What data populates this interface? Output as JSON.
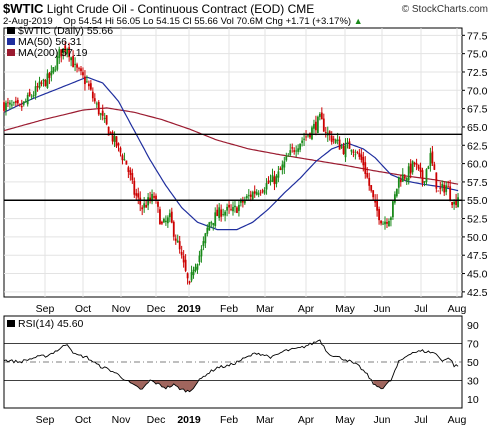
{
  "header": {
    "symbol": "$WTIC",
    "description": "Light Crude Oil - Continuous Contract (EOD)",
    "exchange": "CME",
    "date": "2-Aug-2019",
    "ohlc": "Op 54.54  Hi 56.05  Lo 54.15  Cl 55.66  Vol 70.6M  Chg +1.71 (+3.17%)",
    "chg_arrow": "▲",
    "copyright": "© StockCharts.com"
  },
  "chart_data": [
    {
      "type": "candlestick",
      "title": "Light Crude Oil - Continuous Contract (EOD)",
      "legend": [
        {
          "label": "$WTIC (Daily) 55.66",
          "color": "#000000"
        },
        {
          "label": "MA(50) 56.31",
          "color": "#1f2e9e"
        },
        {
          "label": "MA(200) 57.19",
          "color": "#9b1b30"
        }
      ],
      "legend_placement": "top-left",
      "x_labels": [
        "Sep",
        "Oct",
        "Nov",
        "Dec",
        "2019",
        "Feb",
        "Mar",
        "Apr",
        "May",
        "Jun",
        "Jul",
        "Aug"
      ],
      "y_ticks": [
        42.5,
        45.0,
        47.5,
        50.0,
        52.5,
        55.0,
        57.5,
        60.0,
        62.5,
        65.0,
        67.5,
        70.0,
        72.5,
        75.0,
        77.5
      ],
      "ylim": [
        41.8,
        78.5
      ],
      "xlim": [
        0,
        232
      ],
      "close_anchors": [
        [
          0,
          68.0
        ],
        [
          8,
          67.5
        ],
        [
          18,
          70.5
        ],
        [
          24,
          72.0
        ],
        [
          28,
          75.0
        ],
        [
          32,
          76.0
        ],
        [
          36,
          73.0
        ],
        [
          42,
          71.0
        ],
        [
          45,
          69.0
        ],
        [
          50,
          66.0
        ],
        [
          56,
          63.0
        ],
        [
          62,
          60.0
        ],
        [
          66,
          56.0
        ],
        [
          70,
          54.0
        ],
        [
          76,
          55.5
        ],
        [
          80,
          51.5
        ],
        [
          84,
          52.5
        ],
        [
          88,
          49.0
        ],
        [
          92,
          45.0
        ],
        [
          94,
          43.0
        ],
        [
          96,
          46.0
        ],
        [
          100,
          48.0
        ],
        [
          104,
          52.0
        ],
        [
          110,
          53.5
        ],
        [
          116,
          53.5
        ],
        [
          120,
          54.5
        ],
        [
          126,
          56.0
        ],
        [
          132,
          57.0
        ],
        [
          138,
          58.0
        ],
        [
          142,
          60.0
        ],
        [
          148,
          62.5
        ],
        [
          154,
          64.0
        ],
        [
          160,
          66.0
        ],
        [
          164,
          64.0
        ],
        [
          168,
          63.0
        ],
        [
          172,
          62.0
        ],
        [
          176,
          62.5
        ],
        [
          182,
          60.0
        ],
        [
          188,
          54.0
        ],
        [
          192,
          52.0
        ],
        [
          196,
          53.0
        ],
        [
          200,
          58.0
        ],
        [
          204,
          58.5
        ],
        [
          208,
          60.0
        ],
        [
          212,
          57.5
        ],
        [
          216,
          61.0
        ],
        [
          220,
          56.0
        ],
        [
          224,
          57.0
        ],
        [
          228,
          54.5
        ],
        [
          230,
          55.66
        ]
      ],
      "ma50_anchors": [
        [
          0,
          67.0
        ],
        [
          14,
          68.8
        ],
        [
          30,
          70.5
        ],
        [
          42,
          71.8
        ],
        [
          50,
          71.0
        ],
        [
          58,
          68.5
        ],
        [
          66,
          64.5
        ],
        [
          74,
          60.5
        ],
        [
          82,
          57.0
        ],
        [
          90,
          54.0
        ],
        [
          98,
          52.0
        ],
        [
          108,
          51.0
        ],
        [
          118,
          51.0
        ],
        [
          126,
          52.0
        ],
        [
          134,
          53.8
        ],
        [
          142,
          56.0
        ],
        [
          150,
          58.0
        ],
        [
          158,
          60.3
        ],
        [
          166,
          62.0
        ],
        [
          174,
          62.8
        ],
        [
          182,
          62.0
        ],
        [
          188,
          60.8
        ],
        [
          196,
          58.5
        ],
        [
          204,
          57.6
        ],
        [
          212,
          57.2
        ],
        [
          222,
          56.8
        ],
        [
          230,
          56.31
        ]
      ],
      "ma200_anchors": [
        [
          0,
          64.5
        ],
        [
          20,
          66.0
        ],
        [
          40,
          67.3
        ],
        [
          52,
          67.6
        ],
        [
          66,
          67.0
        ],
        [
          80,
          66.0
        ],
        [
          94,
          64.7
        ],
        [
          108,
          63.2
        ],
        [
          124,
          62.0
        ],
        [
          140,
          61.2
        ],
        [
          156,
          60.5
        ],
        [
          172,
          59.8
        ],
        [
          188,
          59.0
        ],
        [
          204,
          58.3
        ],
        [
          218,
          57.8
        ],
        [
          230,
          57.19
        ]
      ],
      "horizontal_lines": [
        64.0,
        55.0
      ]
    },
    {
      "type": "line",
      "title": "RSI(14)",
      "legend": [
        {
          "label": "RSI(14) 45.60",
          "color": "#000000"
        }
      ],
      "legend_placement": "top-left",
      "y_ticks": [
        10,
        30,
        50,
        70,
        90
      ],
      "ylim": [
        0,
        100
      ],
      "x_labels": [
        "Sep",
        "Oct",
        "Nov",
        "Dec",
        "2019",
        "Feb",
        "Mar",
        "Apr",
        "May",
        "Jun",
        "Jul",
        "Aug"
      ],
      "overbought": 70,
      "oversold": 30,
      "midline": 50,
      "anchors": [
        [
          0,
          52
        ],
        [
          8,
          50
        ],
        [
          16,
          55
        ],
        [
          22,
          57
        ],
        [
          28,
          64
        ],
        [
          32,
          70
        ],
        [
          36,
          58
        ],
        [
          42,
          55
        ],
        [
          48,
          46
        ],
        [
          54,
          41
        ],
        [
          58,
          36
        ],
        [
          62,
          30
        ],
        [
          66,
          24
        ],
        [
          70,
          20
        ],
        [
          74,
          30
        ],
        [
          78,
          26
        ],
        [
          82,
          22
        ],
        [
          86,
          25
        ],
        [
          90,
          20
        ],
        [
          94,
          18
        ],
        [
          98,
          28
        ],
        [
          102,
          36
        ],
        [
          108,
          44
        ],
        [
          114,
          46
        ],
        [
          120,
          52
        ],
        [
          128,
          60
        ],
        [
          136,
          55
        ],
        [
          142,
          62
        ],
        [
          150,
          65
        ],
        [
          156,
          70
        ],
        [
          160,
          74
        ],
        [
          164,
          60
        ],
        [
          168,
          56
        ],
        [
          174,
          52
        ],
        [
          180,
          45
        ],
        [
          184,
          36
        ],
        [
          188,
          24
        ],
        [
          192,
          22
        ],
        [
          196,
          30
        ],
        [
          200,
          50
        ],
        [
          206,
          60
        ],
        [
          212,
          62
        ],
        [
          218,
          60
        ],
        [
          222,
          52
        ],
        [
          226,
          54
        ],
        [
          228,
          46
        ],
        [
          230,
          45.6
        ]
      ]
    }
  ]
}
